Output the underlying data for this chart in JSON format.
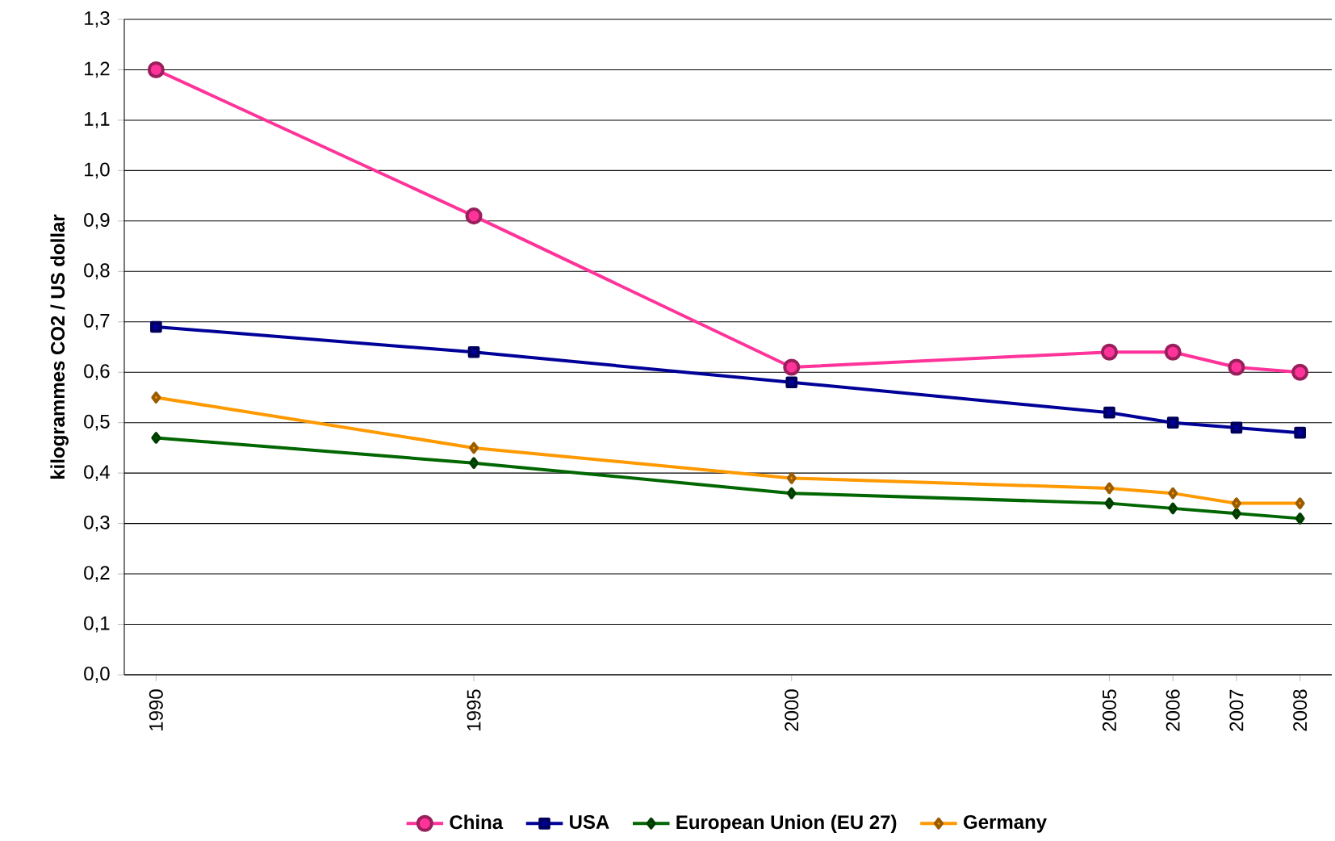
{
  "chart_data": {
    "type": "line",
    "ylabel": "kilogrammes CO2 / US dollar",
    "x": [
      1990,
      1995,
      2000,
      2005,
      2006,
      2007,
      2008
    ],
    "xlim": [
      1989.5,
      2008.5
    ],
    "xticks": [
      1990,
      1995,
      2000,
      2005,
      2006,
      2007,
      2008
    ],
    "ylim": [
      0,
      1.3
    ],
    "yticks": [
      {
        "value": 0,
        "label": "0,0"
      },
      {
        "value": 0.1,
        "label": "0,1"
      },
      {
        "value": 0.2,
        "label": "0,2"
      },
      {
        "value": 0.3,
        "label": "0,3"
      },
      {
        "value": 0.4,
        "label": "0,4"
      },
      {
        "value": 0.5,
        "label": "0,5"
      },
      {
        "value": 0.6,
        "label": "0,6"
      },
      {
        "value": 0.7,
        "label": "0,7"
      },
      {
        "value": 0.8,
        "label": "0,8"
      },
      {
        "value": 0.9,
        "label": "0,9"
      },
      {
        "value": 1.0,
        "label": "1,0"
      },
      {
        "value": 1.1,
        "label": "1,1"
      },
      {
        "value": 1.2,
        "label": "1,2"
      },
      {
        "value": 1.3,
        "label": "1,3"
      }
    ],
    "grid": "y",
    "legend": "bottom",
    "series": [
      {
        "name": "China",
        "color": "#ff3399",
        "marker": "circle",
        "values": [
          1.2,
          0.91,
          0.61,
          0.64,
          0.64,
          0.61,
          0.6
        ]
      },
      {
        "name": "USA",
        "color": "#000099",
        "marker": "square",
        "values": [
          0.69,
          0.64,
          0.58,
          0.52,
          0.5,
          0.49,
          0.48
        ]
      },
      {
        "name": "European Union (EU 27)",
        "color": "#006600",
        "marker": "diamond",
        "values": [
          0.47,
          0.42,
          0.36,
          0.34,
          0.33,
          0.32,
          0.31
        ]
      },
      {
        "name": "Germany",
        "color": "#ff9900",
        "marker": "diamond",
        "values": [
          0.55,
          0.45,
          0.39,
          0.37,
          0.36,
          0.34,
          0.34
        ]
      }
    ]
  }
}
